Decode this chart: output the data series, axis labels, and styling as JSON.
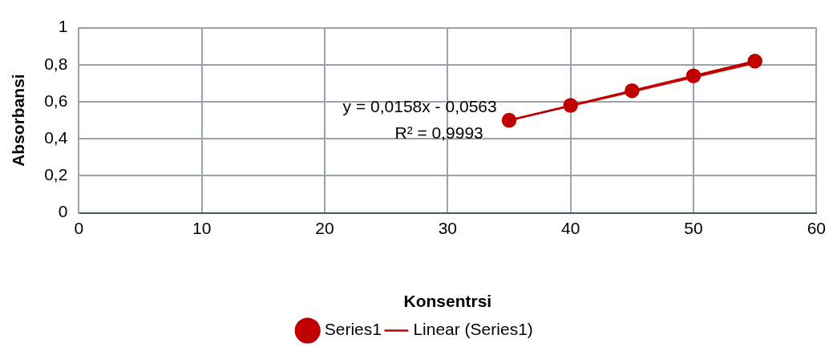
{
  "chart_data": {
    "type": "line",
    "xlabel": "Konsentrsi",
    "ylabel": "Absorbansi",
    "xlim": [
      0,
      60
    ],
    "xticks": [
      0,
      10,
      20,
      30,
      40,
      50,
      60
    ],
    "ylim": [
      0,
      1
    ],
    "yticks": [
      0,
      {
        "value": 0.2,
        "label": "0,2"
      },
      {
        "value": 0.4,
        "label": "0,4"
      },
      {
        "value": 0.6,
        "label": "0,6"
      },
      {
        "value": 0.8,
        "label": "0,8"
      },
      1
    ],
    "grid": true,
    "legend": "bottom",
    "marker": "circle",
    "line_style": "solid",
    "annotations": [
      "y = 0,0158x - 0,0563",
      "R² = 0,9993"
    ],
    "series": [
      {
        "name": "Series1",
        "color": "#c00000",
        "x": [
          35,
          40,
          45,
          50,
          55
        ],
        "values": [
          0.5,
          0.58,
          0.66,
          0.74,
          0.82
        ]
      },
      {
        "name": "Linear (Series1)",
        "type": "line",
        "marker": "none",
        "color": "#c00000",
        "x": [
          35,
          55
        ],
        "values": [
          0.5,
          0.81
        ]
      }
    ]
  }
}
